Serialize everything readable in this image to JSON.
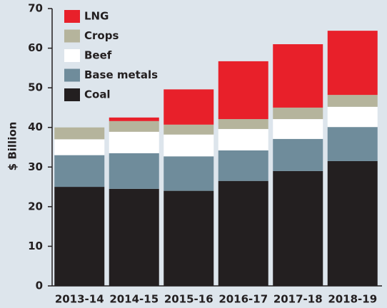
{
  "chart_data": {
    "type": "stacked_bar",
    "y_label": "$ Billion",
    "categories": [
      "2013-14",
      "2014-15",
      "2015-16",
      "2016-17",
      "2017-18",
      "2018-19"
    ],
    "series": [
      {
        "name": "Coal",
        "color": "#231f20",
        "values": [
          25,
          24.5,
          24,
          26.5,
          29,
          31.5
        ]
      },
      {
        "name": "Base metals",
        "color": "#6f8c9b",
        "values": [
          8,
          9,
          8.7,
          7.7,
          8.1,
          8.6
        ]
      },
      {
        "name": "Beef",
        "color": "#ffffff",
        "values": [
          4,
          5.4,
          5.5,
          5.4,
          5,
          5.1
        ]
      },
      {
        "name": "Crops",
        "color": "#b5b49c",
        "values": [
          3,
          2.7,
          2.5,
          2.5,
          2.9,
          3
        ]
      },
      {
        "name": "LNG",
        "color": "#e8202a",
        "values": [
          0,
          0.9,
          8.9,
          14.6,
          16,
          16.2
        ]
      }
    ],
    "ylim": [
      0,
      70
    ],
    "yticks": [
      0,
      10,
      20,
      30,
      40,
      50,
      60,
      70
    ],
    "legend": "upper-left"
  }
}
